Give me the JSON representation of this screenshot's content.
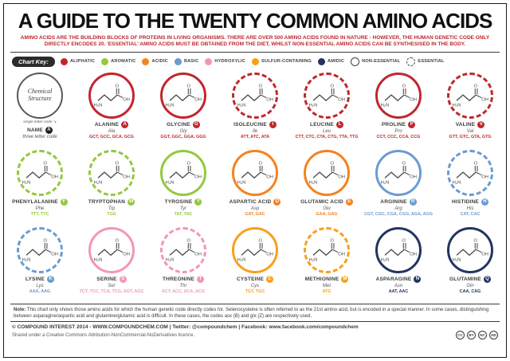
{
  "header": {
    "title": "A GUIDE TO THE TWENTY COMMON AMINO ACIDS",
    "intro": "AMINO ACIDS ARE THE BUILDING BLOCKS OF PROTEINS IN LIVING ORGANISMS. THERE ARE OVER 500 AMINO ACIDS FOUND IN NATURE - HOWEVER, THE HUMAN GENETIC CODE ONLY DIRECTLY ENCODES 20. 'ESSENTIAL' AMINO ACIDS MUST BE OBTAINED FROM THE DIET, WHILST NON-ESSENTIAL AMINO ACIDS CAN BE SYNTHESISED IN THE BODY."
  },
  "key": {
    "label": "Chart Key:",
    "categories": [
      {
        "key": "aliphatic",
        "name": "ALIPHATIC",
        "color": "#c0272d"
      },
      {
        "key": "aromatic",
        "name": "AROMATIC",
        "color": "#94c83d"
      },
      {
        "key": "acidic",
        "name": "ACIDIC",
        "color": "#f58220"
      },
      {
        "key": "basic",
        "name": "BASIC",
        "color": "#6b9bd2"
      },
      {
        "key": "hydroxylic",
        "name": "HYDROXYLIC",
        "color": "#f395bb"
      },
      {
        "key": "sulfur",
        "name": "SULFUR-CONTAINING",
        "color": "#f9a01b"
      },
      {
        "key": "amidic",
        "name": "AMIDIC",
        "color": "#223560"
      }
    ],
    "ring_types": [
      {
        "name": "NON-ESSENTIAL",
        "style": "solid"
      },
      {
        "name": "ESSENTIAL",
        "style": "dashed"
      }
    ]
  },
  "legend_cell": {
    "circle_label": "Chemical Structure",
    "single_letter_note": "single letter code",
    "name_label": "NAME",
    "letter": "A",
    "three_letter_note": "three letter code"
  },
  "amino_acids": [
    {
      "name": "ALANINE",
      "letter": "A",
      "abbr": "Ala",
      "codons": "GCT, GCC, GCA, GCG",
      "category": "aliphatic",
      "essential": false
    },
    {
      "name": "GLYCINE",
      "letter": "G",
      "abbr": "Gly",
      "codons": "GGT, GGC, GGA, GGG",
      "category": "aliphatic",
      "essential": false
    },
    {
      "name": "ISOLEUCINE",
      "letter": "I",
      "abbr": "Ile",
      "codons": "ATT, ATC, ATA",
      "category": "aliphatic",
      "essential": true
    },
    {
      "name": "LEUCINE",
      "letter": "L",
      "abbr": "Leu",
      "codons": "CTT, CTC, CTA, CTG, TTA, TTG",
      "category": "aliphatic",
      "essential": true
    },
    {
      "name": "PROLINE",
      "letter": "P",
      "abbr": "Pro",
      "codons": "CCT, CCC, CCA, CCG",
      "category": "aliphatic",
      "essential": false
    },
    {
      "name": "VALINE",
      "letter": "V",
      "abbr": "Val",
      "codons": "GTT, GTC, GTA, GTG",
      "category": "aliphatic",
      "essential": true
    },
    {
      "name": "PHENYLALANINE",
      "letter": "F",
      "abbr": "Phe",
      "codons": "TTT, TTC",
      "category": "aromatic",
      "essential": true
    },
    {
      "name": "TRYPTOPHAN",
      "letter": "W",
      "abbr": "Trp",
      "codons": "TGG",
      "category": "aromatic",
      "essential": true
    },
    {
      "name": "TYROSINE",
      "letter": "Y",
      "abbr": "Tyr",
      "codons": "TAT, TAC",
      "category": "aromatic",
      "essential": false
    },
    {
      "name": "ASPARTIC ACID",
      "letter": "D",
      "abbr": "Asp",
      "codons": "GAT, GAC",
      "category": "acidic",
      "essential": false
    },
    {
      "name": "GLUTAMIC ACID",
      "letter": "E",
      "abbr": "Glu",
      "codons": "GAA, GAG",
      "category": "acidic",
      "essential": false
    },
    {
      "name": "ARGININE",
      "letter": "R",
      "abbr": "Arg",
      "codons": "CGT, CGC, CGA, CGG, AGA, AGG",
      "category": "basic",
      "essential": false
    },
    {
      "name": "HISTIDINE",
      "letter": "H",
      "abbr": "His",
      "codons": "CAT, CAC",
      "category": "basic",
      "essential": true
    },
    {
      "name": "LYSINE",
      "letter": "K",
      "abbr": "Lys",
      "codons": "AAA, AAG",
      "category": "basic",
      "essential": true
    },
    {
      "name": "SERINE",
      "letter": "S",
      "abbr": "Ser",
      "codons": "TCT, TCC, TCA, TCG, AGT, AGC",
      "category": "hydroxylic",
      "essential": false
    },
    {
      "name": "THREONINE",
      "letter": "T",
      "abbr": "Thr",
      "codons": "ACT, ACC, ACA, ACG",
      "category": "hydroxylic",
      "essential": true
    },
    {
      "name": "CYSTEINE",
      "letter": "C",
      "abbr": "Cys",
      "codons": "TGT, TGC",
      "category": "sulfur",
      "essential": false
    },
    {
      "name": "METHIONINE",
      "letter": "M",
      "abbr": "Met",
      "codons": "ATG",
      "category": "sulfur",
      "essential": true
    },
    {
      "name": "ASPARAGINE",
      "letter": "N",
      "abbr": "Asn",
      "codons": "AAT, AAC",
      "category": "amidic",
      "essential": false
    },
    {
      "name": "GLUTAMINE",
      "letter": "Q",
      "abbr": "Gln",
      "codons": "CAA, CAG",
      "category": "amidic",
      "essential": false
    }
  ],
  "note": {
    "label": "Note:",
    "text": " This chart only shows those amino acids for which the human genetic code directly codes for. Selenocysteine is often referred to as the 21st amino acid, but is encoded in a special manner. In some cases, distinguishing between asparagine/aspartic acid and glutamine/glutamic acid is difficult. In these cases, the codes asx (B) and glx (Z) are respectively used."
  },
  "footer": {
    "copyright": "© COMPOUND INTEREST 2014 - WWW.COMPOUNDCHEM.COM | Twitter: @compoundchem | Facebook: www.facebook.com/compoundchem",
    "license": "Shared under a Creative Commons Attribution-NonCommercial-NoDerivatives licence.",
    "cc_badges": [
      "CC",
      "BY",
      "NC",
      "ND"
    ]
  }
}
